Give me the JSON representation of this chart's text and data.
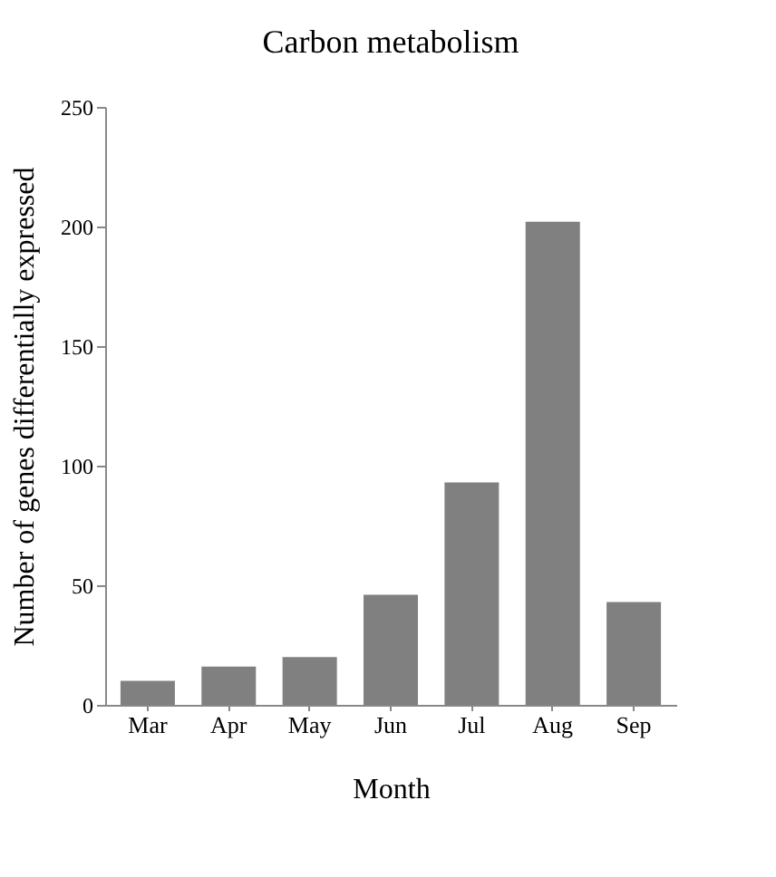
{
  "chart_data": {
    "type": "bar",
    "title": "Carbon metabolism",
    "xlabel": "Month",
    "ylabel": "Number of genes differentially expressed",
    "categories": [
      "Mar",
      "Apr",
      "May",
      "Jun",
      "Jul",
      "Aug",
      "Sep"
    ],
    "values": [
      10,
      16,
      20,
      46,
      93,
      202,
      43
    ],
    "color": "#808080",
    "ylim": [
      0,
      250
    ],
    "yticks": [
      0,
      50,
      100,
      150,
      200,
      250
    ],
    "grid": false
  }
}
